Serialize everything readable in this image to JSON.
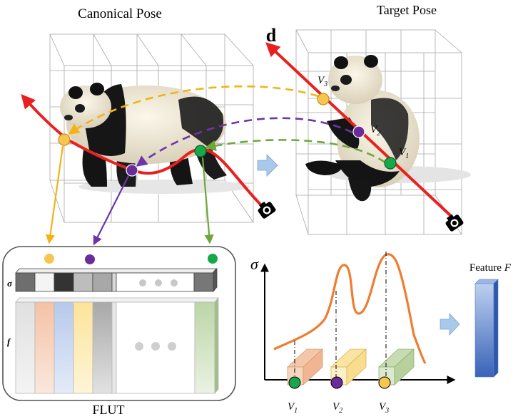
{
  "canonical_title": "Canonical Pose",
  "target_title": "Target Pose",
  "direction_label": "d",
  "sample_labels": {
    "v1": {
      "base": "V",
      "sub": "1"
    },
    "v2": {
      "base": "V",
      "sub": "2"
    },
    "v3": {
      "base": "V",
      "sub": "3"
    }
  },
  "flut": {
    "caption": "FLUT",
    "sigma_label": "σ",
    "feature_row_label": "f"
  },
  "density_plot": {
    "y_axis_label": "σ"
  },
  "feature_output": {
    "label": "Feature",
    "symbol": "F"
  },
  "colors": {
    "ray": "#e8201f",
    "v1_green": "#17a84a",
    "v2_purple": "#6a2c9a",
    "v3_yellow": "#f7c550",
    "arrow_yellow": "#f2b318",
    "arrow_purple": "#6f34a8",
    "arrow_green": "#6da73c",
    "density_curve": "#ee7d30",
    "feature_blue": "#4472c4",
    "flow_arrow": "#a9c8ea"
  }
}
